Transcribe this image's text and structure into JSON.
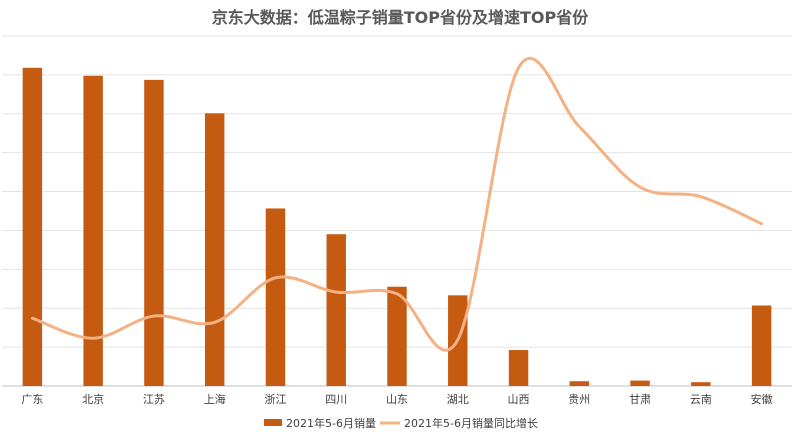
{
  "chart_data": {
    "type": "bar",
    "title": "京东大数据：低温粽子销量TOP省份及增速TOP省份",
    "categories": [
      "广东",
      "北京",
      "江苏",
      "上海",
      "浙江",
      "四川",
      "山东",
      "湖北",
      "山西",
      "贵州",
      "甘肃",
      "云南",
      "安徽"
    ],
    "series": [
      {
        "name": "2021年5-6月销量",
        "type": "bar",
        "color": "#C55A11",
        "values": [
          100,
          97.5,
          96.2,
          85.7,
          55.8,
          47.7,
          31.2,
          28.5,
          11.3,
          1.5,
          1.7,
          1.2,
          25.3
        ]
      },
      {
        "name": "2021年5-6月销量同比增长",
        "type": "line",
        "color": "#F4B183",
        "values": [
          21.3,
          15.0,
          22.0,
          20.0,
          34.0,
          29.5,
          29.0,
          14.5,
          100,
          81.5,
          62.5,
          59.5,
          51.0
        ]
      }
    ],
    "ylim": [
      0,
      110
    ],
    "y_gridlines": 9,
    "y_tick_labels": false,
    "grid": true,
    "legend_position": "bottom"
  }
}
